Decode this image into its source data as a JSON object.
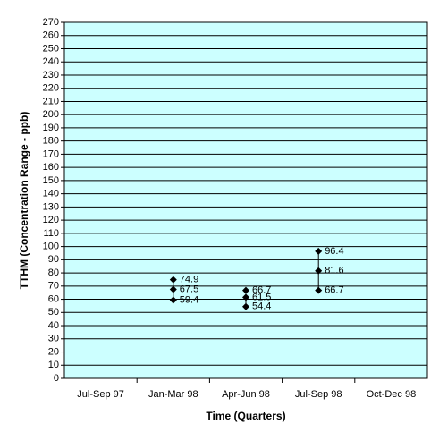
{
  "chart_data": {
    "type": "high-low",
    "x_label": "Time (Quarters)",
    "y_label": "TTHM (Concentration Range - ppb)",
    "categories": [
      "Jul-Sep 97",
      "Jan-Mar 98",
      "Apr-Jun 98",
      "Jul-Sep 98",
      "Oct-Dec 98"
    ],
    "series": [
      {
        "color": "#000000",
        "values": [
          null,
          74.9,
          66.7,
          96.4,
          null
        ]
      },
      {
        "color": "#000000",
        "values": [
          null,
          67.5,
          61.5,
          81.6,
          null
        ]
      },
      {
        "color": "#000000",
        "values": [
          null,
          59.4,
          54.4,
          66.7,
          null
        ]
      }
    ],
    "ylim": [
      0,
      270
    ],
    "yticks": [
      0,
      10,
      20,
      30,
      40,
      50,
      60,
      70,
      80,
      90,
      100,
      110,
      120,
      130,
      140,
      150,
      160,
      170,
      180,
      190,
      200,
      210,
      220,
      230,
      240,
      250,
      260,
      270
    ],
    "grid": true,
    "background": "#ccffff"
  }
}
